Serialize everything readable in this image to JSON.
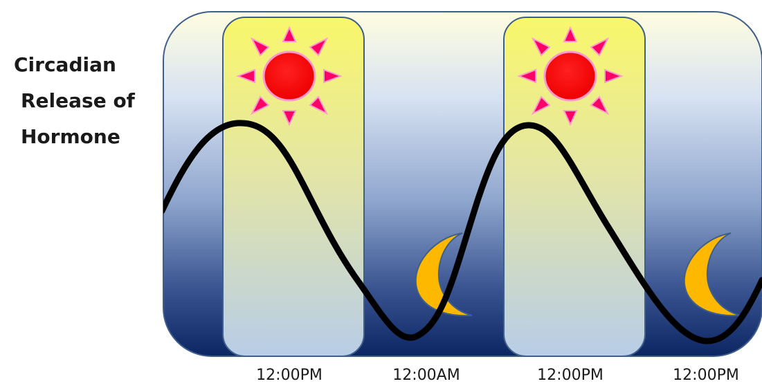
{
  "y_axis_label": [
    "Circadian",
    "Release of",
    "Hormone"
  ],
  "x_tick_labels": [
    "12:00PM",
    "12:00AM",
    "12:00PM",
    "12:00PM"
  ],
  "icons": {
    "day": "sun-icon",
    "night": "moon-icon"
  },
  "colors": {
    "panel_top": "#fffde0",
    "panel_bottom": "#0b2663",
    "daylight_top": "#f9f76a",
    "daylight_bottom": "#b8cde8",
    "sun_fill": "#ff0000",
    "sun_rays": "#ff0066",
    "moon_fill": "#ffb800",
    "curve": "#000000"
  }
}
